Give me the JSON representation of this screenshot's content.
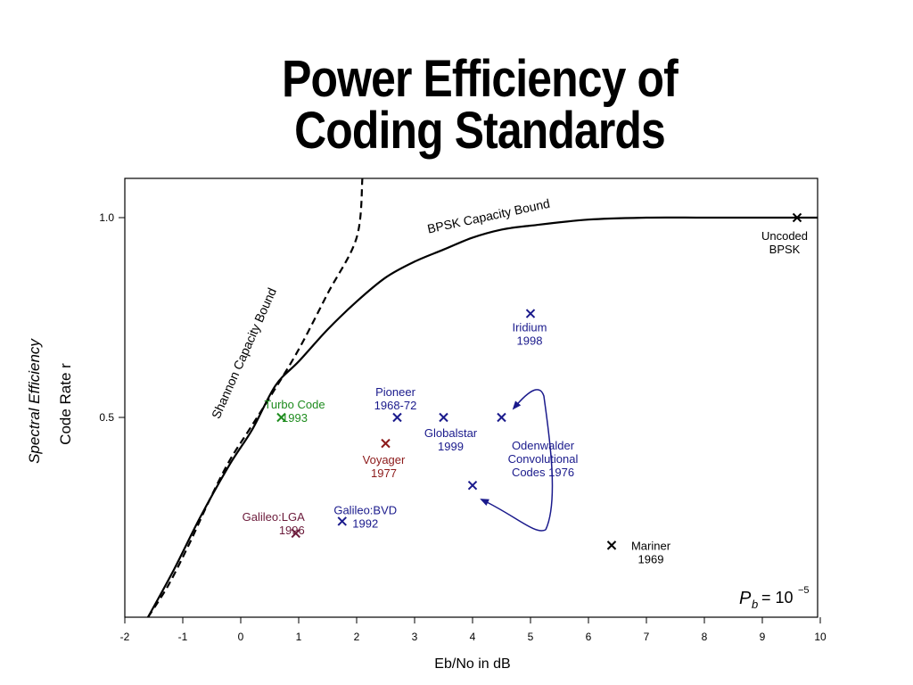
{
  "page": {
    "title_line1": "Power Efficiency of",
    "title_line2": "Coding Standards"
  },
  "chart_data": {
    "type": "scatter",
    "xlabel": "Eb/No in dB",
    "ylabel_italic": "Spectral Efficiency",
    "ylabel": "Code Rate r",
    "xlim": [
      -2,
      10
    ],
    "ylim": [
      0,
      1.1
    ],
    "x_ticks": [
      -2,
      -1,
      0,
      1,
      2,
      3,
      4,
      5,
      6,
      7,
      8,
      9,
      10
    ],
    "y_ticks": [
      {
        "value": 0.5,
        "label": "0.5"
      },
      {
        "value": 1.0,
        "label": "1.0"
      }
    ],
    "annotation_pb": {
      "base": "P",
      "sub": "b",
      "eq": "= 10",
      "exp": "−5"
    },
    "curves": [
      {
        "label": "Shannon Capacity Bound",
        "style": "dashed",
        "color": "#000000",
        "points": [
          [
            -1.6,
            0.0
          ],
          [
            -1.25,
            0.08
          ],
          [
            -0.9,
            0.18
          ],
          [
            -0.55,
            0.29
          ],
          [
            -0.2,
            0.39
          ],
          [
            0.15,
            0.47
          ],
          [
            0.5,
            0.55
          ],
          [
            1.0,
            0.67
          ],
          [
            1.5,
            0.81
          ],
          [
            2.0,
            0.95
          ],
          [
            2.1,
            1.1
          ]
        ]
      },
      {
        "label": "BPSK Capacity Bound",
        "style": "solid",
        "color": "#000000",
        "points": [
          [
            -1.6,
            0.0
          ],
          [
            -1.15,
            0.12
          ],
          [
            -0.7,
            0.25
          ],
          [
            -0.2,
            0.38
          ],
          [
            0.2,
            0.47
          ],
          [
            0.6,
            0.58
          ],
          [
            1.0,
            0.64
          ],
          [
            1.5,
            0.72
          ],
          [
            2.0,
            0.79
          ],
          [
            2.5,
            0.85
          ],
          [
            3.0,
            0.89
          ],
          [
            3.5,
            0.92
          ],
          [
            4.0,
            0.95
          ],
          [
            4.5,
            0.97
          ],
          [
            5.0,
            0.98
          ],
          [
            6.0,
            0.995
          ],
          [
            7.0,
            1.0
          ],
          [
            8.0,
            1.0
          ],
          [
            9.0,
            1.0
          ],
          [
            10.0,
            1.0
          ]
        ]
      }
    ],
    "points": [
      {
        "name": "Uncoded BPSK",
        "x": 9.6,
        "y": 1.0,
        "color": "#000000",
        "lines": [
          "Uncoded",
          "BPSK"
        ],
        "label_anchor": "middle",
        "label_dx": -14,
        "label_dy": 25
      },
      {
        "name": "Iridium",
        "x": 5.0,
        "y": 0.76,
        "color": "#1a1a8c",
        "lines": [
          "Iridium",
          "1998"
        ],
        "label_anchor": "middle",
        "label_dx": -1,
        "label_dy": 20
      },
      {
        "name": "Turbo Code",
        "x": 0.7,
        "y": 0.5,
        "color": "#1e8c1e",
        "lines": [
          "Turbo Code",
          "1993"
        ],
        "label_anchor": "middle",
        "label_dx": 15,
        "label_dy": -10
      },
      {
        "name": "Pioneer",
        "x": 2.7,
        "y": 0.5,
        "color": "#1a1a8c",
        "lines": [
          "Pioneer",
          "1968-72"
        ],
        "label_anchor": "middle",
        "label_dx": -2,
        "label_dy": -24
      },
      {
        "name": "Globalstar",
        "x": 3.5,
        "y": 0.5,
        "color": "#1a1a8c",
        "lines": [
          "Globalstar",
          "1999"
        ],
        "label_anchor": "middle",
        "label_dx": 8,
        "label_dy": 22
      },
      {
        "name": "Odenwalder 1",
        "x": 4.5,
        "y": 0.5,
        "color": "#1a1a8c",
        "lines": [],
        "label_anchor": "middle",
        "label_dx": 0,
        "label_dy": 0
      },
      {
        "name": "Voyager",
        "x": 2.5,
        "y": 0.435,
        "color": "#8c1a1a",
        "lines": [
          "Voyager",
          "1977"
        ],
        "label_anchor": "middle",
        "label_dx": -2,
        "label_dy": 23
      },
      {
        "name": "Odenwalder 2",
        "x": 4.0,
        "y": 0.33,
        "color": "#1a1a8c",
        "lines": [],
        "label_anchor": "middle",
        "label_dx": 0,
        "label_dy": 0
      },
      {
        "name": "Galileo:BVD",
        "x": 1.75,
        "y": 0.24,
        "color": "#1a1a8c",
        "lines": [
          "Galileo:BVD",
          "1992"
        ],
        "label_anchor": "middle",
        "label_dx": 26,
        "label_dy": -8
      },
      {
        "name": "Galileo:LGA",
        "x": 0.95,
        "y": 0.21,
        "color": "#6b1a3a",
        "lines": [
          "Galileo:LGA",
          "1996"
        ],
        "label_anchor": "end",
        "label_dx": 10,
        "label_dy": -14
      },
      {
        "name": "Mariner",
        "x": 6.4,
        "y": 0.18,
        "color": "#000000",
        "lines": [
          "Mariner",
          "1969"
        ],
        "label_anchor": "middle",
        "label_dx": 44,
        "label_dy": 5
      }
    ],
    "group_label": {
      "lines": [
        "Odenwalder",
        "Convolutional",
        "Codes 1976"
      ],
      "color": "#1a1a8c"
    }
  }
}
